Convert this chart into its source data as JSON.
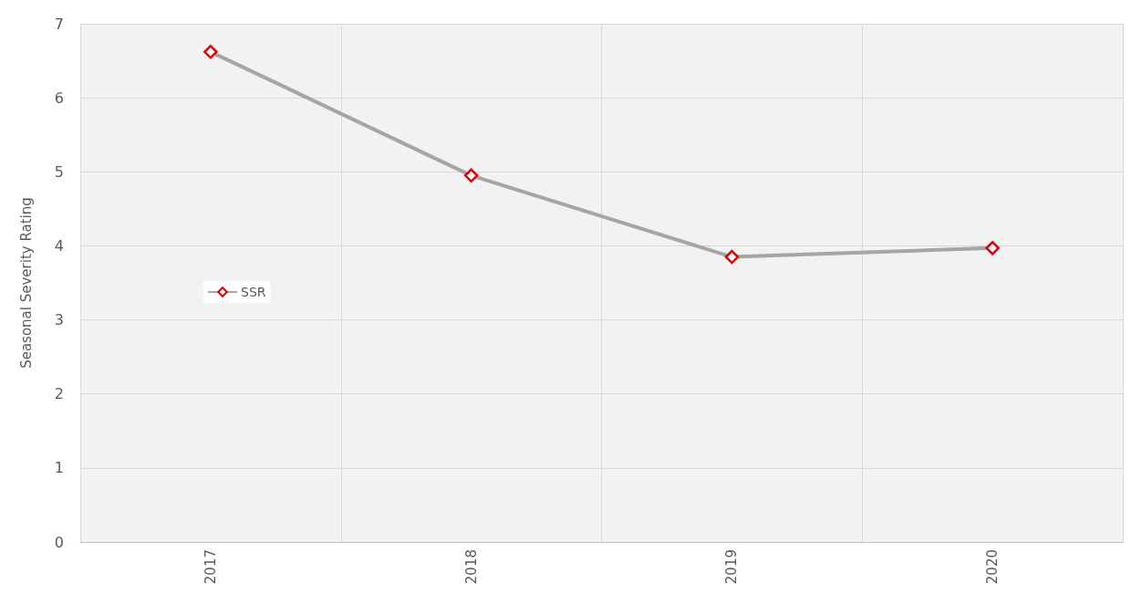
{
  "chart_data": {
    "type": "line",
    "ylabel": "Seasonal Severity Rating",
    "categories": [
      "2017",
      "2018",
      "2019",
      "2020"
    ],
    "series": [
      {
        "name": "SSR",
        "color": "#a5a5a5",
        "values": [
          6.62,
          4.95,
          3.85,
          3.97
        ]
      }
    ],
    "ylim": [
      0,
      7
    ],
    "yticks": [
      0,
      1,
      2,
      3,
      4,
      5,
      6,
      7
    ],
    "grid": true,
    "legend": "left",
    "marker": "diamond",
    "line_style": "solid"
  }
}
